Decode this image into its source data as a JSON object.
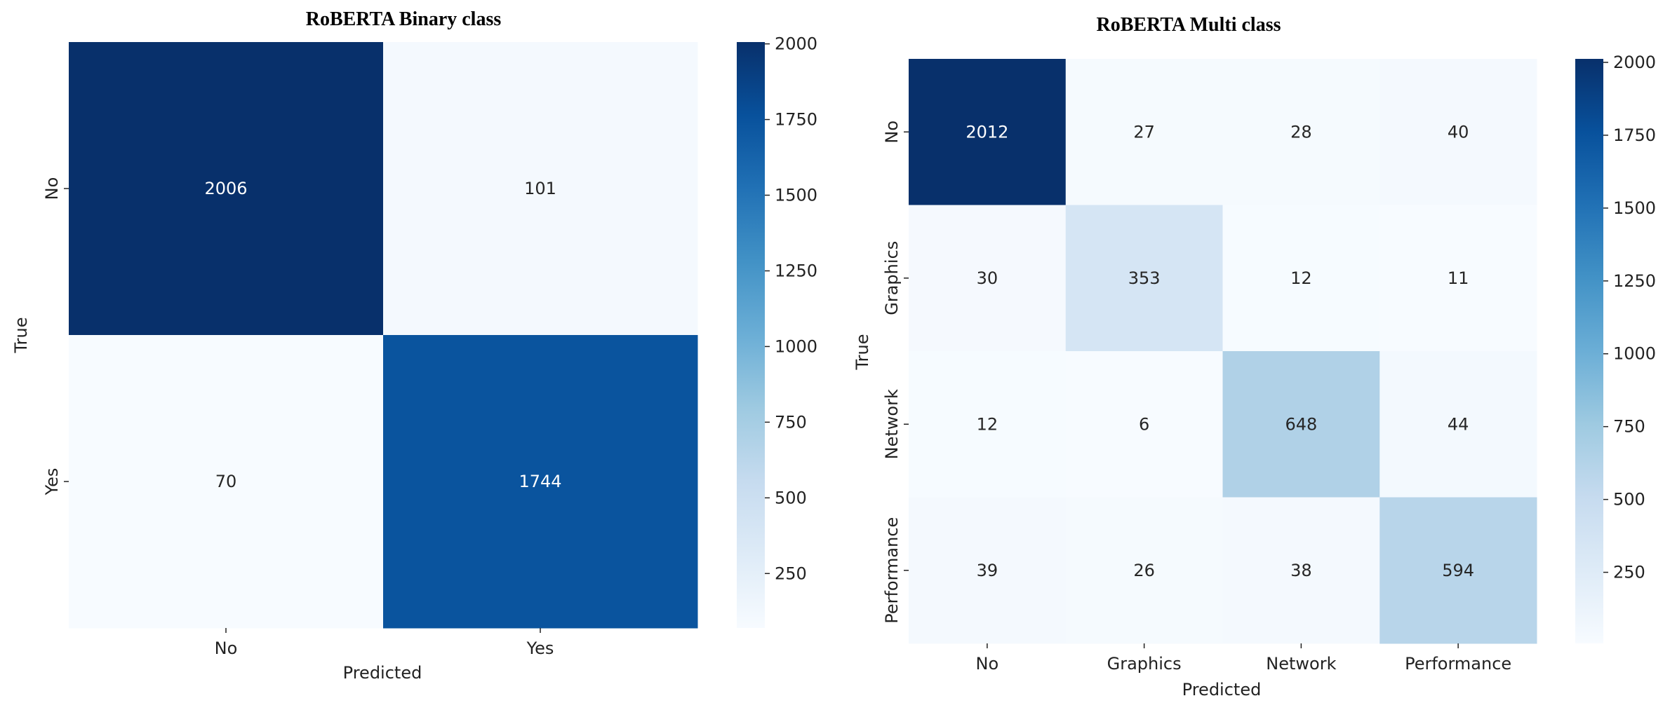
{
  "chart_data": [
    {
      "type": "heatmap",
      "title": "RoBERTA Binary class",
      "xlabel": "Predicted",
      "ylabel": "True",
      "x_categories": [
        "No",
        "Yes"
      ],
      "y_categories": [
        "No",
        "Yes"
      ],
      "values": [
        [
          2006,
          101
        ],
        [
          70,
          1744
        ]
      ],
      "colorbar": {
        "vmin": 70,
        "vmax": 2006,
        "ticks": [
          250,
          500,
          750,
          1000,
          1250,
          1500,
          1750,
          2000
        ]
      },
      "colormap": "Blues"
    },
    {
      "type": "heatmap",
      "title": "RoBERTA Multi class",
      "xlabel": "Predicted",
      "ylabel": "True",
      "x_categories": [
        "No",
        "Graphics",
        "Network",
        "Performance"
      ],
      "y_categories": [
        "No",
        "Graphics",
        "Network",
        "Performance"
      ],
      "values": [
        [
          2012,
          27,
          28,
          40
        ],
        [
          30,
          353,
          12,
          11
        ],
        [
          12,
          6,
          648,
          44
        ],
        [
          39,
          26,
          38,
          594
        ]
      ],
      "colorbar": {
        "vmin": 6,
        "vmax": 2012,
        "ticks": [
          250,
          500,
          750,
          1000,
          1250,
          1500,
          1750,
          2000
        ]
      },
      "colormap": "Blues"
    }
  ]
}
